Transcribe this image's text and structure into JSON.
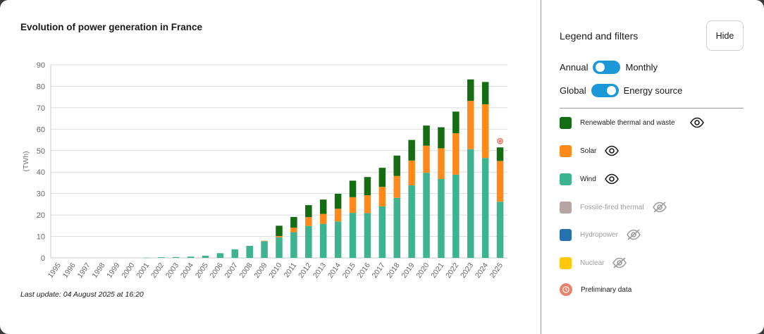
{
  "chart_panel": {
    "title": "Evolution of power generation in France",
    "last_update": "Last update: 04 August 2025 at 16:20"
  },
  "chart_data": {
    "type": "bar",
    "stacked": true,
    "title": "Evolution of power generation in France",
    "ylabel": "(TWh)",
    "xlabel": "",
    "ylim": [
      0,
      90
    ],
    "yticks": [
      0,
      10,
      20,
      30,
      40,
      50,
      60,
      70,
      80,
      90
    ],
    "categories": [
      "1995",
      "1996",
      "1997",
      "1998",
      "1999",
      "2000",
      "2001",
      "2002",
      "2003",
      "2004",
      "2005",
      "2006",
      "2007",
      "2008",
      "2009",
      "2010",
      "2011",
      "2012",
      "2013",
      "2014",
      "2015",
      "2016",
      "2017",
      "2018",
      "2019",
      "2020",
      "2021",
      "2022",
      "2023",
      "2024",
      "2025"
    ],
    "series": [
      {
        "name": "Wind",
        "color": "#3db38f",
        "values": [
          0,
          0,
          0,
          0,
          0,
          0,
          0.1,
          0.3,
          0.4,
          0.6,
          1.0,
          2.2,
          4.0,
          5.6,
          7.8,
          9.6,
          12.0,
          14.9,
          15.9,
          17.0,
          21.0,
          20.9,
          24.0,
          28.0,
          33.8,
          39.7,
          36.8,
          38.8,
          50.7,
          46.6,
          26.2
        ]
      },
      {
        "name": "Solar",
        "color": "#ff8a1b",
        "values": [
          0,
          0,
          0,
          0,
          0,
          0,
          0,
          0,
          0,
          0,
          0,
          0,
          0,
          0,
          0.2,
          0.6,
          2.1,
          4.1,
          4.6,
          5.9,
          7.3,
          8.3,
          9.1,
          10.2,
          11.6,
          12.6,
          14.3,
          19.3,
          22.5,
          25.0,
          19.0
        ]
      },
      {
        "name": "Renewable thermal and waste",
        "color": "#146d12",
        "values": [
          0,
          0,
          0,
          0,
          0,
          0,
          0,
          0,
          0,
          0,
          0,
          0,
          0,
          0,
          0,
          4.8,
          5.0,
          5.6,
          6.7,
          7.0,
          7.7,
          8.5,
          8.9,
          9.5,
          9.6,
          9.4,
          9.8,
          10.1,
          10.0,
          10.4,
          6.3
        ]
      }
    ],
    "preliminary_years": [
      "2025"
    ]
  },
  "legend": {
    "title": "Legend and filters",
    "hide_label": "Hide",
    "toggle1": {
      "left": "Annual",
      "right": "Monthly",
      "state": "left"
    },
    "toggle2": {
      "left": "Global",
      "right": "Energy source",
      "state": "right"
    },
    "items": [
      {
        "label": "Renewable thermal and waste",
        "color": "#146d12",
        "visible": true
      },
      {
        "label": "Solar",
        "color": "#ff8a1b",
        "visible": true
      },
      {
        "label": "Wind",
        "color": "#3db38f",
        "visible": true
      },
      {
        "label": "Fossile-fired thermal",
        "color": "#b5a6a4",
        "visible": false
      },
      {
        "label": "Hydropower",
        "color": "#2672b0",
        "visible": false
      },
      {
        "label": "Nuclear",
        "color": "#ffc80a",
        "visible": false
      }
    ],
    "preliminary_label": "Preliminary data"
  }
}
